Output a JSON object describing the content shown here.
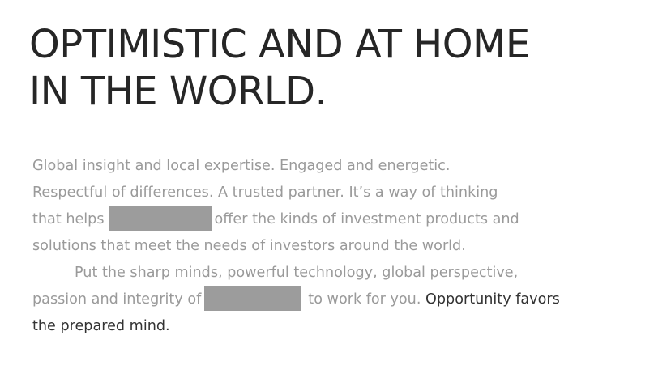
{
  "headline": {
    "line1": "OPTIMISTIC AND AT HOME",
    "line2": "IN THE WORLD."
  },
  "body": {
    "p1": {
      "line1": "Global insight and local expertise. Engaged and energetic.",
      "line2": "Respectful of differences.  A trusted partner. It’s a way of thinking",
      "line3_before": "that helps",
      "line3_after": "offer the kinds of investment products and",
      "line4": "solutions that meet the needs of investors around the world."
    },
    "p2": {
      "line1": "Put the sharp minds, powerful technology, global perspective,",
      "line2_before": "passion and integrity of",
      "line2_after": "to work for you.",
      "tagline_part1": "Opportunity favors",
      "tagline_part2": "the prepared mind."
    }
  },
  "colors": {
    "headline": "#262626",
    "body_text": "#9a9a9a",
    "tagline": "#333333",
    "redaction": "#9c9c9c",
    "background": "#ffffff"
  }
}
